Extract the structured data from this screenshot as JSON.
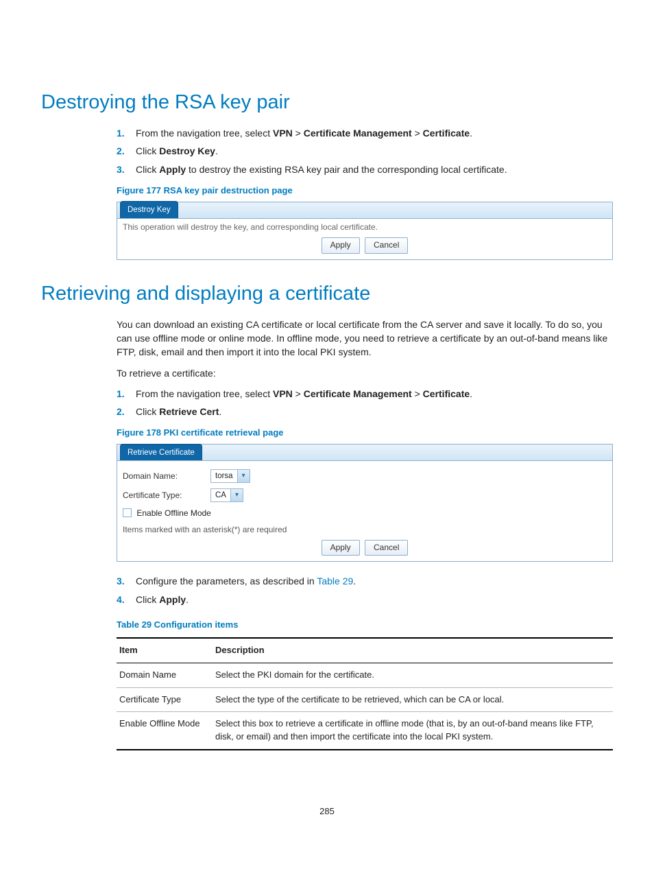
{
  "colors": {
    "accent": "#007cc0",
    "panel_border": "#8caecc",
    "tab_bg": "#0f67a8",
    "tab_text": "#ffffff",
    "btn_border": "#8caecc",
    "table_row_border": "#b6b6b6"
  },
  "page_number": "285",
  "section1": {
    "title": "Destroying the RSA key pair",
    "steps": [
      {
        "n": "1.",
        "pre": "From the navigation tree, select ",
        "b1": "VPN",
        "mid1": " > ",
        "b2": "Certificate Management",
        "mid2": " > ",
        "b3": "Certificate",
        "post": "."
      },
      {
        "n": "2.",
        "pre": "Click ",
        "b1": "Destroy Key",
        "post": "."
      },
      {
        "n": "3.",
        "pre": "Click ",
        "b1": "Apply",
        "post": " to destroy the existing RSA key pair and the corresponding local certificate."
      }
    ],
    "figure_caption": "Figure 177 RSA key pair destruction page",
    "ui": {
      "tab": "Destroy Key",
      "msg": "This operation will destroy the key, and corresponding local certificate.",
      "apply": "Apply",
      "cancel": "Cancel"
    }
  },
  "section2": {
    "title": "Retrieving and displaying a certificate",
    "intro": "You can download an existing CA certificate or local certificate from the CA server and save it locally. To do so, you can use offline mode or online mode. In offline mode, you need to retrieve a certificate by an out-of-band means like FTP, disk, email and then import it into the local PKI system.",
    "intro2": "To retrieve a certificate:",
    "steps1": [
      {
        "n": "1.",
        "pre": "From the navigation tree, select ",
        "b1": "VPN",
        "mid1": " > ",
        "b2": "Certificate Management",
        "mid2": " > ",
        "b3": "Certificate",
        "post": "."
      },
      {
        "n": "2.",
        "pre": "Click ",
        "b1": "Retrieve Cert",
        "post": "."
      }
    ],
    "figure_caption": "Figure 178 PKI certificate retrieval page",
    "ui": {
      "tab": "Retrieve Certificate",
      "domain_label": "Domain Name:",
      "domain_value": "torsa",
      "type_label": "Certificate Type:",
      "type_value": "CA",
      "offline_label": "Enable Offline Mode",
      "req_note": "Items marked with an asterisk(*) are required",
      "apply": "Apply",
      "cancel": "Cancel"
    },
    "steps2": [
      {
        "n": "3.",
        "pre": "Configure the parameters, as described in ",
        "link": "Table 29",
        "post": "."
      },
      {
        "n": "4.",
        "pre": "Click ",
        "b1": "Apply",
        "post": "."
      }
    ],
    "table_caption": "Table 29 Configuration items",
    "table": {
      "columns": [
        "Item",
        "Description"
      ],
      "rows": [
        [
          "Domain Name",
          "Select the PKI domain for the certificate."
        ],
        [
          "Certificate Type",
          "Select the type of the certificate to be retrieved, which can be CA or local."
        ],
        [
          "Enable Offline Mode",
          "Select this box to retrieve a certificate in offline mode (that is, by an out-of-band means like FTP, disk, or email) and then import the certificate into the local PKI system."
        ]
      ]
    }
  }
}
